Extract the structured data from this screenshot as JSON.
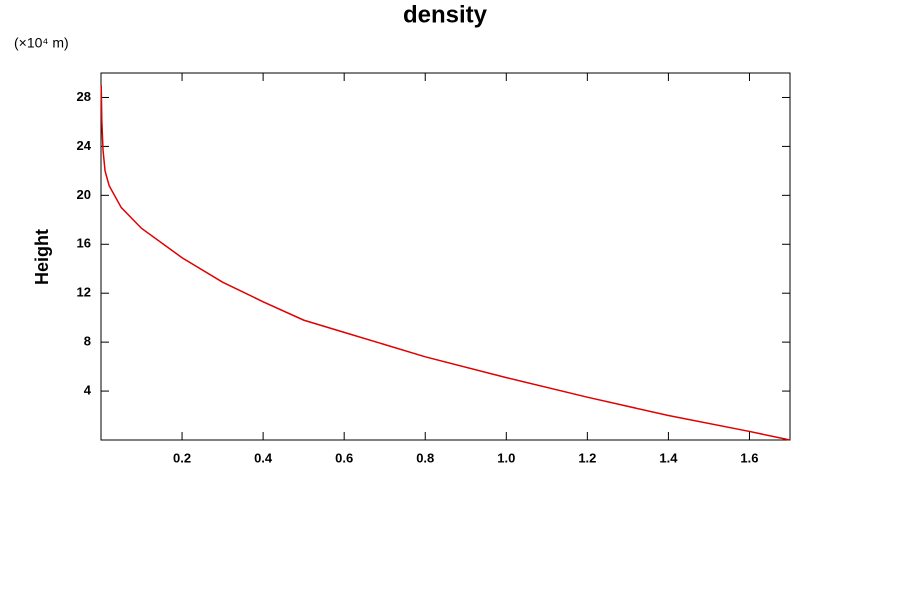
{
  "chart_data": {
    "type": "line",
    "title": "density",
    "ylabel": "Height",
    "y_unit": "(×10⁴ m)",
    "x": [
      1.7,
      1.6,
      1.4,
      1.2,
      1.0,
      0.8,
      0.6,
      0.5,
      0.4,
      0.3,
      0.2,
      0.1,
      0.05,
      0.02,
      0.01,
      0.005,
      0.002,
      0.0005
    ],
    "values": [
      0,
      0.7,
      2.0,
      3.5,
      5.1,
      6.8,
      8.8,
      9.8,
      11.3,
      12.9,
      14.9,
      17.3,
      19.0,
      20.8,
      22,
      23.7,
      26.1,
      29
    ],
    "color": "#e00000",
    "xlim": [
      0,
      1.7
    ],
    "ylim": [
      0,
      30
    ],
    "xticks": [
      0.2,
      0.4,
      0.6,
      0.8,
      {
        "value": 1,
        "label": "1.0"
      },
      1.2,
      1.4,
      1.6
    ],
    "yticks": [
      4,
      8,
      12,
      16,
      20,
      24,
      28
    ]
  }
}
